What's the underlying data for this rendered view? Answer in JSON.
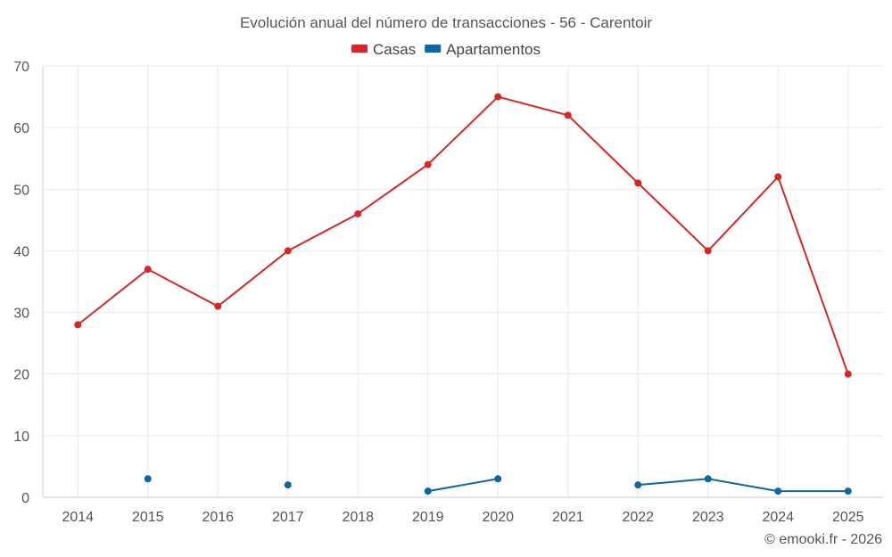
{
  "chart_data": {
    "type": "line",
    "title": "Evolución anual del número de transacciones - 56 - Carentoir",
    "categories": [
      "2014",
      "2015",
      "2016",
      "2017",
      "2018",
      "2019",
      "2020",
      "2021",
      "2022",
      "2023",
      "2024",
      "2025"
    ],
    "series": [
      {
        "name": "Casas",
        "color": "#d62728",
        "values": [
          28,
          37,
          31,
          40,
          46,
          54,
          65,
          62,
          51,
          40,
          52,
          20
        ]
      },
      {
        "name": "Apartamentos",
        "color": "#1066a0",
        "values": [
          null,
          3,
          null,
          2,
          null,
          1,
          3,
          null,
          2,
          3,
          1,
          1
        ]
      }
    ],
    "ylim": [
      0,
      70
    ],
    "yticks": [
      0,
      10,
      20,
      30,
      40,
      50,
      60,
      70
    ],
    "xlabel": "",
    "ylabel": "",
    "grid": true,
    "legend_position": "top-center"
  },
  "credit": "© emooki.fr - 2026"
}
